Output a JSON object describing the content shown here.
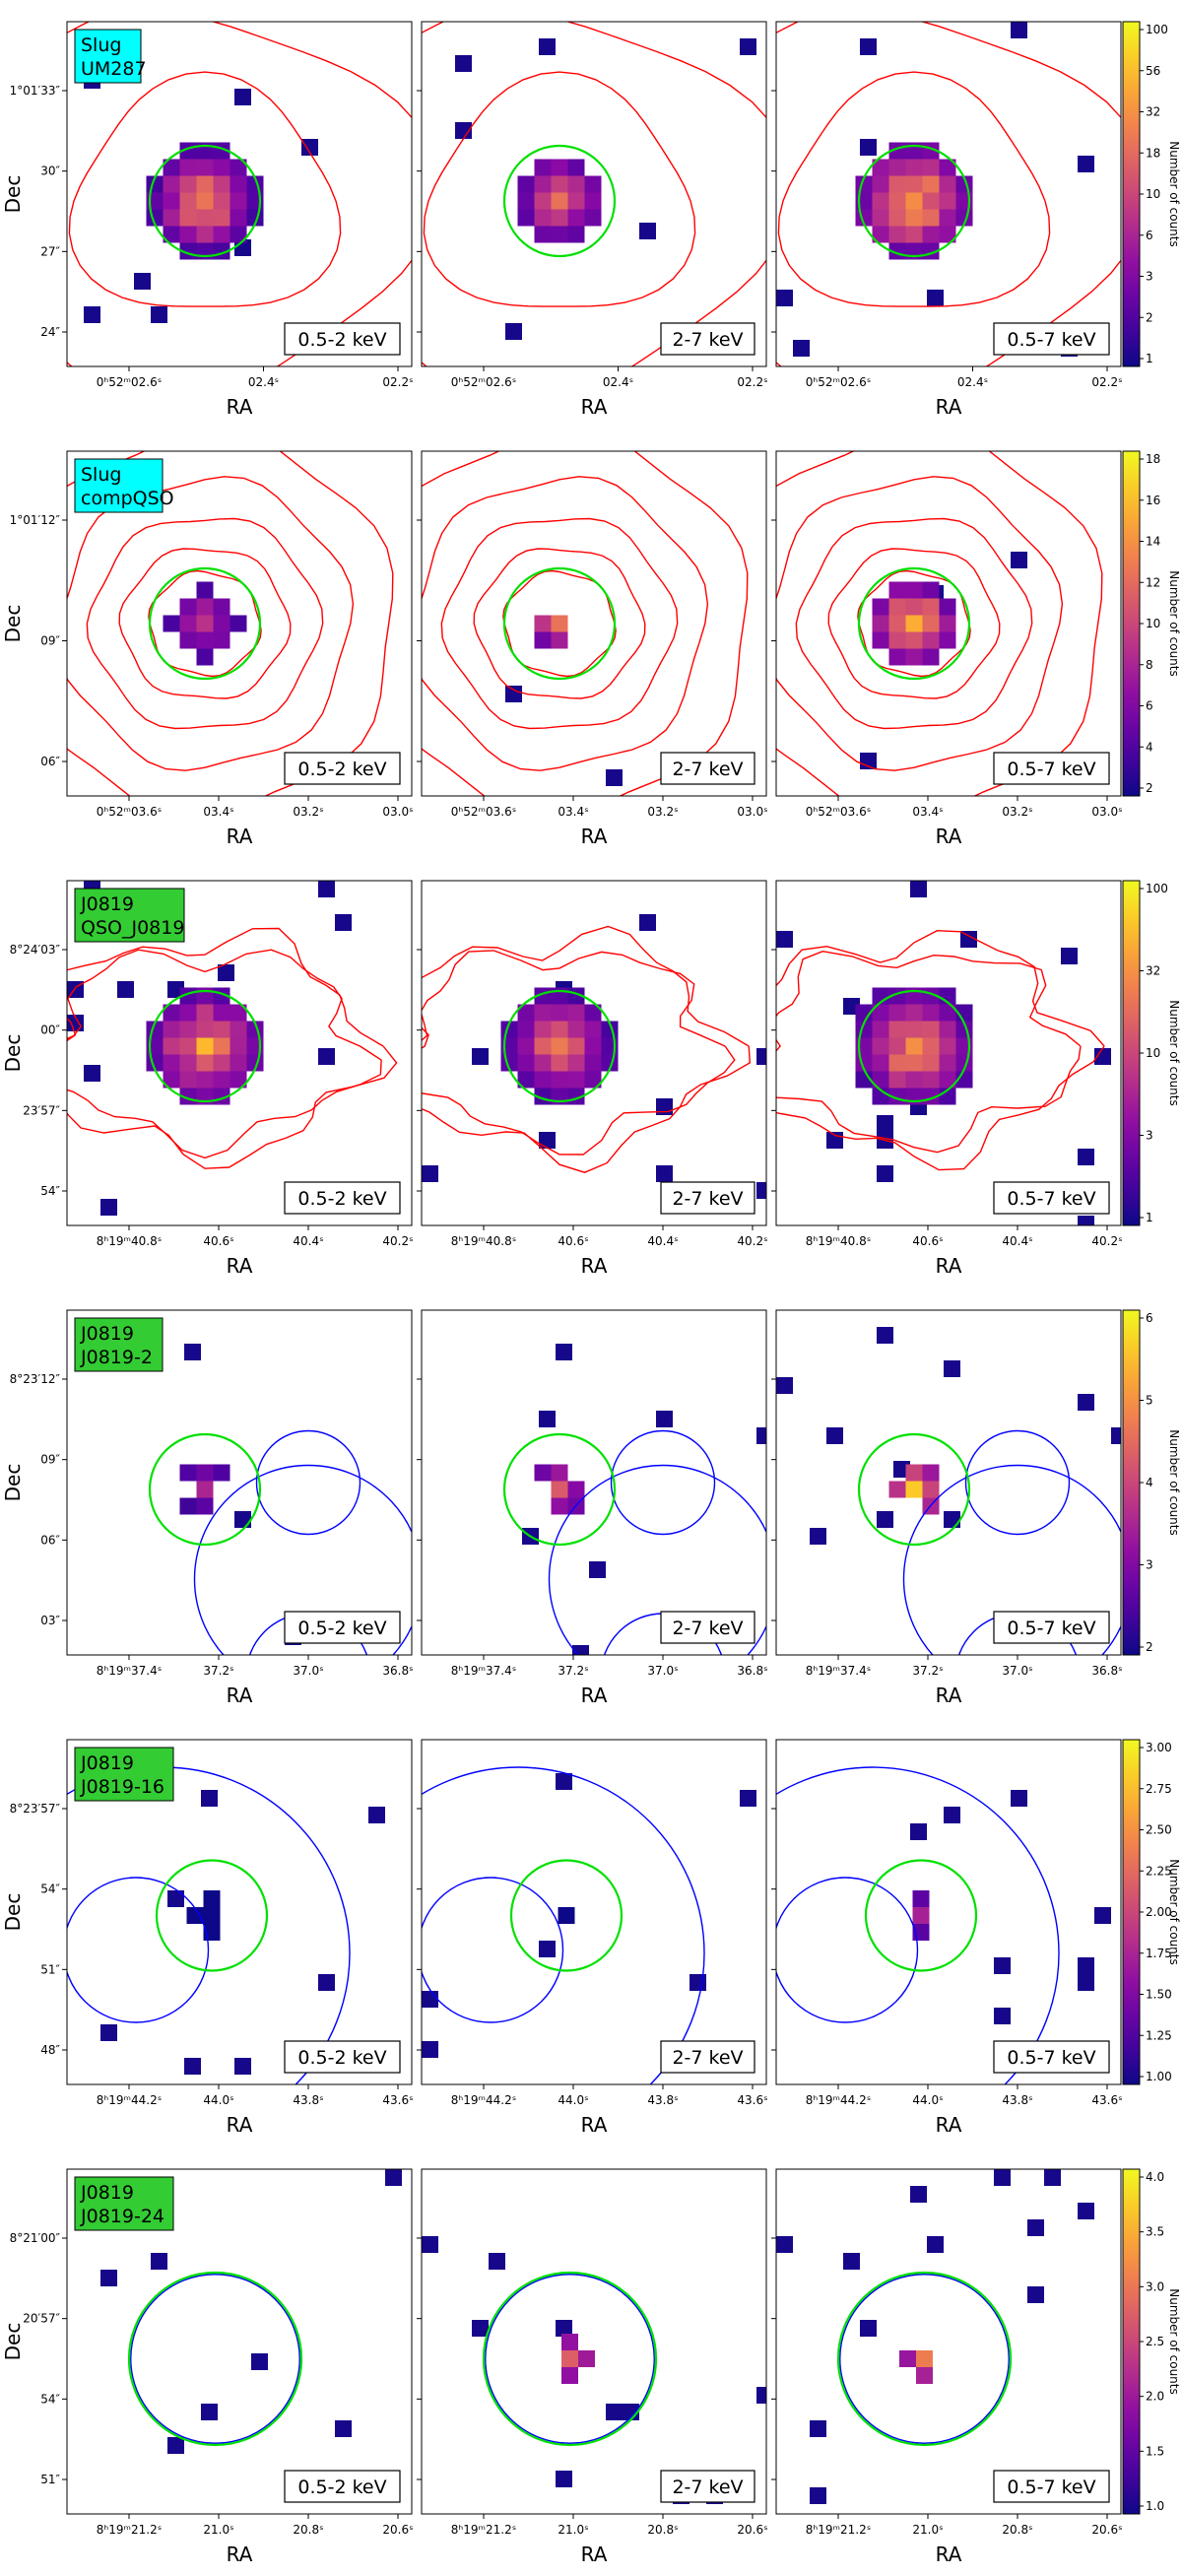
{
  "figure": {
    "colormap": "plasma",
    "contour_color": "#ff0000",
    "source_circle_color": "#00e000",
    "region_circle_color": "#0000ff",
    "frame_color": "#000000"
  },
  "chart_data": [
    {
      "type": "heatmap",
      "field": "Slug",
      "source": "UM287",
      "badge_color": "#00ffff",
      "bands": [
        "0.5-2 keV",
        "2-7 keV",
        "0.5-7 keV"
      ],
      "xlabel": "RA",
      "ylabel": "Dec",
      "xticks": [
        "0ʰ52ᵐ02.6ˢ",
        "02.4ˢ",
        "02.2ˢ"
      ],
      "yticks": [
        "1°01′33″",
        "30″",
        "27″",
        "24″"
      ],
      "colorbar": {
        "label": "Number of counts",
        "scale": "log",
        "range": [
          1,
          100
        ],
        "ticks": [
          "100",
          "56",
          "32",
          "18",
          "10",
          "6",
          "3",
          "2",
          "1"
        ]
      },
      "panels_description": "Compact source at image centre; peak counts ~100 in 0.5-7 keV",
      "has_contours": true,
      "has_source_circle": true
    },
    {
      "type": "heatmap",
      "field": "Slug",
      "source": "compQSO",
      "badge_color": "#00ffff",
      "bands": [
        "0.5-2 keV",
        "2-7 keV",
        "0.5-7 keV"
      ],
      "xlabel": "RA",
      "ylabel": "Dec",
      "xticks": [
        "0ʰ52ᵐ03.6ˢ",
        "03.4ˢ",
        "03.2ˢ",
        "03.0ˢ"
      ],
      "yticks": [
        "1°01′12″",
        "09″",
        "06″"
      ],
      "colorbar": {
        "label": "Number of counts",
        "scale": "linear",
        "range": [
          1,
          19
        ],
        "ticks": [
          "18",
          "16",
          "14",
          "12",
          "10",
          "8",
          "6",
          "4",
          "2"
        ]
      },
      "has_contours": true,
      "has_source_circle": true
    },
    {
      "type": "heatmap",
      "field": "J0819",
      "source": "QSO_J0819",
      "badge_color": "#33cc33",
      "bands": [
        "0.5-2 keV",
        "2-7 keV",
        "0.5-7 keV"
      ],
      "xlabel": "RA",
      "ylabel": "Dec",
      "xticks": [
        "8ʰ19ᵐ40.8ˢ",
        "40.6ˢ",
        "40.4ˢ",
        "40.2ˢ"
      ],
      "yticks": [
        "8°24′03″",
        "00″",
        "23′57″",
        "54″"
      ],
      "colorbar": {
        "label": "Number of counts",
        "scale": "log",
        "range": [
          1,
          300
        ],
        "ticks": [
          "100",
          "32",
          "10",
          "3",
          "1"
        ]
      },
      "has_contours": true,
      "has_source_circle": true
    },
    {
      "type": "heatmap",
      "field": "J0819",
      "source": "J0819-2",
      "badge_color": "#33cc33",
      "bands": [
        "0.5-2 keV",
        "2-7 keV",
        "0.5-7 keV"
      ],
      "xlabel": "RA",
      "ylabel": "Dec",
      "xticks": [
        "8ʰ19ᵐ37.4ˢ",
        "37.2ˢ",
        "37.0ˢ",
        "36.8ˢ"
      ],
      "yticks": [
        "8°23′12″",
        "09″",
        "06″",
        "03″"
      ],
      "colorbar": {
        "label": "Number of counts",
        "scale": "log",
        "range": [
          1,
          6
        ],
        "ticks": [
          "6",
          "5",
          "4",
          "3",
          "2"
        ]
      },
      "has_contours": false,
      "has_source_circle": true
    },
    {
      "type": "heatmap",
      "field": "J0819",
      "source": "J0819-16",
      "badge_color": "#33cc33",
      "bands": [
        "0.5-2 keV",
        "2-7 keV",
        "0.5-7 keV"
      ],
      "xlabel": "RA",
      "ylabel": "Dec",
      "xticks": [
        "8ʰ19ᵐ44.2ˢ",
        "44.0ˢ",
        "43.8ˢ",
        "43.6ˢ"
      ],
      "yticks": [
        "8°23′57″",
        "54″",
        "51″",
        "48″"
      ],
      "colorbar": {
        "label": "Number of counts",
        "scale": "linear",
        "range": [
          1,
          3
        ],
        "ticks": [
          "3.00",
          "2.75",
          "2.50",
          "2.25",
          "2.00",
          "1.75",
          "1.50",
          "1.25",
          "1.00"
        ]
      },
      "has_contours": false,
      "has_source_circle": true
    },
    {
      "type": "heatmap",
      "field": "J0819",
      "source": "J0819-24",
      "badge_color": "#33cc33",
      "bands": [
        "0.5-2 keV",
        "2-7 keV",
        "0.5-7 keV"
      ],
      "xlabel": "RA",
      "ylabel": "Dec",
      "xticks": [
        "8ʰ19ᵐ21.2ˢ",
        "21.0ˢ",
        "20.8ˢ",
        "20.6ˢ"
      ],
      "yticks": [
        "8°21′00″",
        "20′57″",
        "54″",
        "51″"
      ],
      "colorbar": {
        "label": "Number of counts",
        "scale": "linear",
        "range": [
          1,
          4
        ],
        "ticks": [
          "4.0",
          "3.5",
          "3.0",
          "2.5",
          "2.0",
          "1.5",
          "1.0"
        ]
      },
      "has_contours": false,
      "has_source_circle": true
    }
  ]
}
